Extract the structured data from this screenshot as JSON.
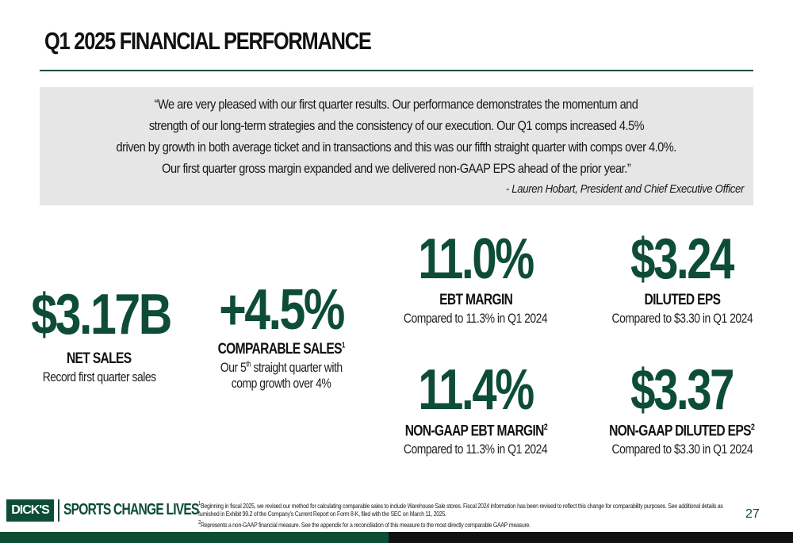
{
  "title": "Q1 2025 FINANCIAL PERFORMANCE",
  "quote": {
    "lines": [
      "“We are very pleased with our first quarter results. Our performance demonstrates the momentum and",
      "strength of our long-term strategies and the consistency of our execution. Our Q1 comps increased 4.5%",
      "driven by growth in both average ticket and in transactions and this was our fifth straight quarter with comps over 4.0%.",
      "Our first quarter gross margin expanded and we delivered non-GAAP EPS ahead of the prior year.”"
    ],
    "attribution": "- Lauren Hobart, President and Chief Executive Officer"
  },
  "metrics": {
    "net_sales": {
      "value": "$3.17B",
      "label": "NET SALES",
      "sub": "Record first quarter sales"
    },
    "comparable_sales": {
      "value": "+4.5%",
      "label": "COMPARABLE SALES",
      "label_sup": "1",
      "sub_pre": "Our 5",
      "sub_sup": "th",
      "sub_post": " straight quarter with",
      "sub2": "comp growth  over 4%"
    },
    "ebt_margin": {
      "value": "11.0%",
      "label": "EBT MARGIN",
      "sub": "Compared to 11.3% in Q1 2024"
    },
    "diluted_eps": {
      "value": "$3.24",
      "label": "DILUTED EPS",
      "sub": "Compared to $3.30 in Q1 2024"
    },
    "non_gaap_ebt_margin": {
      "value": "11.4%",
      "label": "NON-GAAP EBT MARGIN",
      "label_sup": "2",
      "sub": "Compared to 11.3% in Q1 2024"
    },
    "non_gaap_diluted_eps": {
      "value": "$3.37",
      "label": "NON-GAAP DILUTED EPS",
      "label_sup": "2",
      "sub": "Compared to $3.30 in Q1 2024"
    }
  },
  "footer": {
    "logo": "DICK'S",
    "tagline": "SPORTS CHANGE LIVES",
    "footnote1_sup": "1",
    "footnote1a": "Beginning in fiscal 2025, we revised our method for calculating comparable sales to include Warehouse Sale stores. Fiscal 2024 information has been revised to reflect this change for comparability purposes. See additional details as",
    "footnote1b": "furnished in Exhibit 99.2 of the Company's Current Report on Form 8-K, filed with the SEC on March 11, 2025.",
    "footnote2_sup": "2",
    "footnote2": "Represents a non-GAAP financial measure. See the appendix for a reconciliation of this measure to the most directly comparable GAAP measure.",
    "page_number": "27"
  },
  "colors": {
    "brand_green": "#0d4d35",
    "quote_bg": "#e6e6e6",
    "footer_black": "#111111"
  }
}
